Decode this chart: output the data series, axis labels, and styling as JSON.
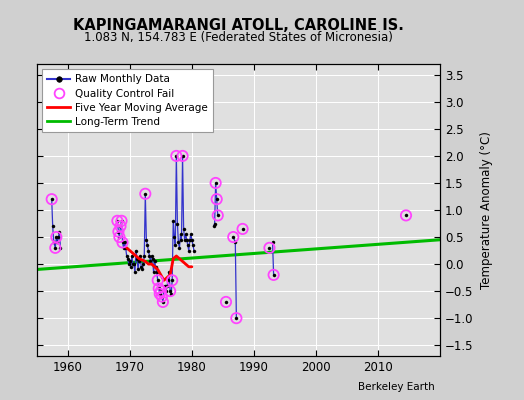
{
  "title": "KAPINGAMARANGI ATOLL, CAROLINE IS.",
  "subtitle": "1.083 N, 154.783 E (Federated States of Micronesia)",
  "ylabel": "Temperature Anomaly (°C)",
  "credit": "Berkeley Earth",
  "ylim": [
    -1.7,
    3.7
  ],
  "xlim": [
    1955,
    2020
  ],
  "yticks": [
    -1.5,
    -1.0,
    -0.5,
    0.0,
    0.5,
    1.0,
    1.5,
    2.0,
    2.5,
    3.0,
    3.5
  ],
  "xticks": [
    1960,
    1970,
    1980,
    1990,
    2000,
    2010
  ],
  "bg_color": "#e0e0e0",
  "grid_color": "#ffffff",
  "raw_color": "#3333cc",
  "qc_color": "#ff44ff",
  "ma_color": "#ff0000",
  "trend_color": "#00bb00",
  "raw_x": [
    1957.42,
    1957.58,
    1957.75,
    1958.0,
    1958.17,
    1958.33,
    1958.5,
    1958.67,
    1958.83,
    1968.0,
    1968.17,
    1968.33,
    1968.5,
    1968.67,
    1968.83,
    1969.0,
    1969.17,
    1969.33,
    1969.5,
    1969.67,
    1969.83,
    1970.0,
    1970.17,
    1970.33,
    1970.5,
    1970.67,
    1970.83,
    1971.0,
    1971.17,
    1971.33,
    1971.5,
    1971.67,
    1971.83,
    1972.0,
    1972.17,
    1972.33,
    1972.5,
    1972.67,
    1972.83,
    1973.0,
    1973.17,
    1973.33,
    1973.5,
    1973.67,
    1973.83,
    1974.0,
    1974.17,
    1974.33,
    1974.5,
    1974.67,
    1974.83,
    1975.0,
    1975.17,
    1975.33,
    1975.5,
    1975.67,
    1975.83,
    1976.0,
    1976.17,
    1976.33,
    1976.5,
    1976.67,
    1976.83,
    1977.0,
    1977.17,
    1977.33,
    1977.5,
    1977.67,
    1977.83,
    1978.0,
    1978.17,
    1978.33,
    1978.5,
    1978.67,
    1978.83,
    1979.0,
    1979.17,
    1979.33,
    1979.5,
    1979.67,
    1979.83,
    1980.0,
    1980.17,
    1980.33,
    1983.5,
    1983.67,
    1983.83,
    1984.0,
    1984.17,
    1985.5,
    1986.67,
    1987.0,
    1987.17,
    1988.17,
    1992.5,
    1993.0,
    1993.17,
    2014.5
  ],
  "raw_y": [
    1.2,
    0.7,
    0.4,
    0.3,
    0.5,
    0.4,
    0.5,
    0.6,
    0.3,
    0.8,
    0.6,
    0.5,
    0.7,
    0.8,
    0.4,
    0.3,
    0.4,
    0.3,
    0.15,
    0.1,
    0.0,
    0.05,
    -0.05,
    0.15,
    0.0,
    0.0,
    -0.15,
    0.25,
    0.1,
    -0.1,
    0.05,
    0.15,
    -0.05,
    -0.1,
    0.0,
    0.15,
    1.3,
    0.45,
    0.35,
    0.25,
    0.15,
    0.05,
    0.15,
    0.1,
    -0.15,
    0.05,
    -0.05,
    -0.15,
    -0.3,
    -0.45,
    -0.55,
    -0.5,
    -0.6,
    -0.7,
    -0.5,
    -0.4,
    -0.5,
    -0.4,
    -0.3,
    -0.15,
    -0.5,
    -0.55,
    -0.3,
    0.8,
    0.5,
    0.35,
    2.0,
    0.75,
    0.4,
    0.3,
    0.55,
    0.45,
    2.0,
    0.65,
    0.45,
    0.55,
    0.45,
    0.35,
    0.25,
    0.45,
    0.55,
    0.45,
    0.35,
    0.25,
    0.7,
    0.75,
    1.5,
    1.2,
    0.9,
    -0.7,
    0.5,
    0.4,
    -1.0,
    0.65,
    0.3,
    0.4,
    -0.2,
    0.9
  ],
  "qc_x": [
    1957.42,
    1958.0,
    1958.17,
    1968.0,
    1968.17,
    1968.33,
    1968.5,
    1968.67,
    1968.83,
    1972.5,
    1974.5,
    1974.67,
    1974.83,
    1975.0,
    1975.17,
    1975.33,
    1976.5,
    1976.83,
    1977.5,
    1978.5,
    1983.83,
    1984.0,
    1984.17,
    1985.5,
    1986.67,
    1987.17,
    1988.17,
    1992.5,
    1993.17,
    2014.5
  ],
  "qc_y": [
    1.2,
    0.3,
    0.5,
    0.8,
    0.6,
    0.5,
    0.7,
    0.8,
    0.4,
    1.3,
    -0.3,
    -0.45,
    -0.55,
    -0.5,
    -0.6,
    -0.7,
    -0.5,
    -0.3,
    2.0,
    2.0,
    1.5,
    1.2,
    0.9,
    -0.7,
    0.5,
    -1.0,
    0.65,
    0.3,
    -0.2,
    0.9
  ],
  "ma_x": [
    1969.5,
    1970.5,
    1971.5,
    1972.5,
    1973.0,
    1973.5,
    1974.0,
    1974.5,
    1975.0,
    1975.5,
    1976.0,
    1976.5,
    1977.0,
    1977.5,
    1978.0,
    1978.5,
    1979.0,
    1979.5,
    1980.0
  ],
  "ma_y": [
    0.3,
    0.2,
    0.1,
    0.05,
    0.0,
    0.0,
    -0.05,
    -0.1,
    -0.2,
    -0.3,
    -0.25,
    -0.2,
    0.1,
    0.15,
    0.1,
    0.05,
    0.0,
    -0.05,
    -0.05
  ],
  "trend_x": [
    1955,
    2020
  ],
  "trend_y": [
    -0.1,
    0.45
  ]
}
